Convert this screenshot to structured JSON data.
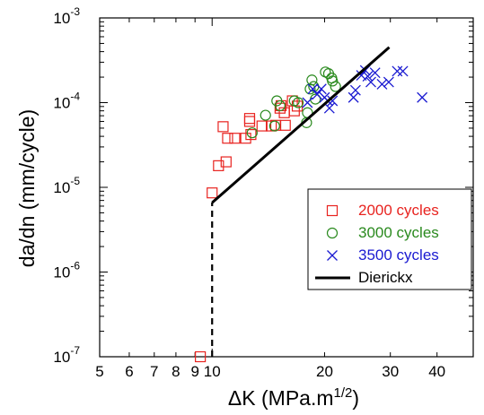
{
  "chart_data": {
    "type": "scatter",
    "title": "",
    "xlabel": "ΔK (MPa.m",
    "xlabel_sup": "1/2",
    "xlabel_close": ")",
    "ylabel": "da/dn (mm/cycle)",
    "xscale": "log",
    "yscale": "log",
    "xlim": [
      5,
      50
    ],
    "ylim": [
      1e-07,
      0.001
    ],
    "x_ticks": [
      {
        "value": 5,
        "label": "5"
      },
      {
        "value": 6,
        "label": "6"
      },
      {
        "value": 7,
        "label": "7"
      },
      {
        "value": 8,
        "label": "8"
      },
      {
        "value": 9,
        "label": "9"
      },
      {
        "value": 10,
        "label": "10"
      },
      {
        "value": 20,
        "label": "20"
      },
      {
        "value": 30,
        "label": "30"
      },
      {
        "value": 40,
        "label": "40"
      }
    ],
    "y_ticks": [
      {
        "value": 1e-07,
        "base": "10",
        "exp": "-7"
      },
      {
        "value": 1e-06,
        "base": "10",
        "exp": "-6"
      },
      {
        "value": 1e-05,
        "base": "10",
        "exp": "-5"
      },
      {
        "value": 0.0001,
        "base": "10",
        "exp": "-4"
      },
      {
        "value": 0.001,
        "base": "10",
        "exp": "-3"
      }
    ],
    "grid": false,
    "legend_position": "lower-right",
    "series": [
      {
        "name": "2000 cycles",
        "marker": "square",
        "color": "#e8231f",
        "x": [
          9.3,
          10.0,
          10.4,
          10.7,
          10.9,
          11.0,
          11.5,
          12.3,
          12.6,
          12.6,
          12.7,
          13.6,
          14.4,
          14.8,
          15.2,
          15.3,
          15.6,
          15.7,
          16.4,
          16.6,
          16.9
        ],
        "y": [
          1e-07,
          8.6e-06,
          1.8e-05,
          5.2e-05,
          2e-05,
          3.8e-05,
          3.8e-05,
          3.8e-05,
          6.5e-05,
          6e-05,
          4.2e-05,
          5.3e-05,
          5.3e-05,
          5.4e-05,
          8.6e-05,
          9.2e-05,
          7.6e-05,
          5.4e-05,
          0.000105,
          8e-05,
          9.1e-05
        ]
      },
      {
        "name": "3000 cycles",
        "marker": "circle",
        "color": "#2a8a1e",
        "x": [
          12.8,
          13.9,
          14.7,
          14.9,
          15.2,
          16.6,
          17.0,
          17.9,
          18.0,
          18.3,
          18.5,
          18.7,
          18.9,
          20.1,
          20.5,
          20.9,
          21.0,
          21.4
        ],
        "y": [
          4.4e-05,
          7.1e-05,
          5.3e-05,
          0.000105,
          9.2e-05,
          0.000105,
          0.0001,
          5.8e-05,
          7.6e-05,
          0.000145,
          0.000185,
          0.000155,
          0.00011,
          0.00023,
          0.00022,
          0.000195,
          0.00018,
          0.000155
        ]
      },
      {
        "name": "3500 cycles",
        "marker": "x",
        "color": "#1a1ad1",
        "x": [
          18.0,
          18.6,
          19.1,
          19.6,
          20.0,
          20.4,
          20.6,
          21.0,
          23.9,
          24.2,
          25.1,
          25.7,
          26.1,
          26.6,
          27.3,
          28.5,
          29.7,
          31.3,
          32.4,
          36.5
        ],
        "y": [
          0.0001,
          0.000145,
          0.000125,
          0.000145,
          0.000115,
          0.000105,
          8.6e-05,
          0.000105,
          0.000115,
          0.00014,
          0.00021,
          0.00024,
          0.000205,
          0.000175,
          0.000225,
          0.000165,
          0.000175,
          0.000235,
          0.000235,
          0.000115
        ]
      },
      {
        "name": "Dierickx",
        "marker": "line",
        "color": "#000000",
        "x": [
          10.0,
          29.8
        ],
        "y": [
          6.6e-06,
          0.00045
        ],
        "threshold_line": {
          "x": 10.0,
          "y_from": 1e-07,
          "y_to": 6.6e-06,
          "style": "dashed"
        }
      }
    ]
  }
}
